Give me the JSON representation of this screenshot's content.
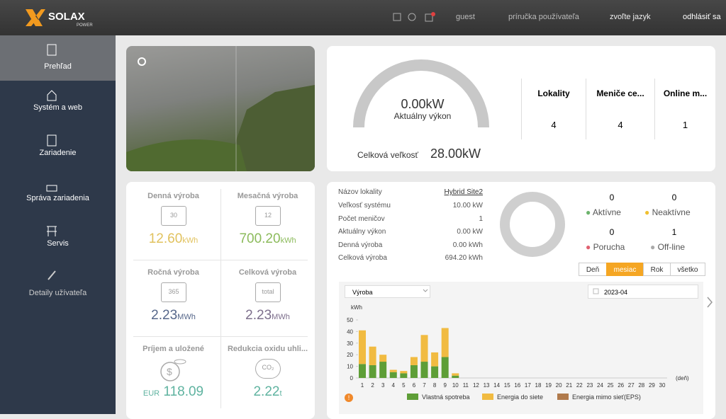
{
  "header": {
    "logo": "SOLAX",
    "logo_sub": "POWER",
    "user": "guest",
    "manual": "príručka používateľa",
    "language": "zvoľte jazyk",
    "logout": "odhlásiť sa"
  },
  "sidebar": {
    "items": [
      "Prehľad",
      "Systém a web",
      "Zariadenie",
      "Správa zariadenia",
      "Servis",
      "Detaily užívateľa"
    ]
  },
  "gauge": {
    "value": "0.00kW",
    "label": "Aktuálny výkon",
    "total_label": "Celková veľkosť",
    "total_value": "28.00kW"
  },
  "stats": [
    {
      "label": "Lokality",
      "value": "4"
    },
    {
      "label": "Meniče ce...",
      "value": "4"
    },
    {
      "label": "Online m...",
      "value": "1"
    }
  ],
  "production": [
    {
      "label": "Denná výroba",
      "icon": "30",
      "value": "12.60",
      "unit": "kWh"
    },
    {
      "label": "Mesačná výroba",
      "icon": "12",
      "value": "700.20",
      "unit": "kWh"
    },
    {
      "label": "Ročná výroba",
      "icon": "365",
      "value": "2.23",
      "unit": "MWh"
    },
    {
      "label": "Celková výroba",
      "icon": "total",
      "value": "2.23",
      "unit": "MWh"
    },
    {
      "label": "Príjem a uložené",
      "currency": "EUR",
      "value": "118.09"
    },
    {
      "label": "Redukcia oxidu uhli...",
      "icon": "CO₂",
      "value": "2.22",
      "unit": "t"
    }
  ],
  "site": {
    "info": [
      [
        "Názov lokality",
        "Hybrid Site2"
      ],
      [
        "Veľkosť systému",
        "10.00 kW"
      ],
      [
        "Počet meničov",
        "1"
      ],
      [
        "Aktuálny výkon",
        "0.00 kW"
      ],
      [
        "Denná výroba",
        "0.00 kWh"
      ],
      [
        "Celková výroba",
        "694.20 kWh"
      ]
    ],
    "status": [
      {
        "count": "0",
        "label": "Aktívne"
      },
      {
        "count": "0",
        "label": "Neaktívne"
      },
      {
        "count": "0",
        "label": "Porucha"
      },
      {
        "count": "1",
        "label": "Off-line"
      }
    ],
    "tabs": [
      "Deň",
      "mesiac",
      "Rok",
      "všetko"
    ],
    "dropdown": "Výroba",
    "date": "2023-04"
  },
  "chart_data": {
    "type": "bar",
    "stacked": true,
    "y_label": "kWh",
    "x_label": "(deň)",
    "categories": [
      "1",
      "2",
      "3",
      "4",
      "5",
      "6",
      "7",
      "8",
      "9",
      "10",
      "11",
      "12",
      "13",
      "14",
      "15",
      "16",
      "17",
      "18",
      "19",
      "20",
      "21",
      "22",
      "23",
      "24",
      "25",
      "26",
      "27",
      "28",
      "29",
      "30"
    ],
    "series": [
      {
        "name": "Vlastná spotreba",
        "color": "#5e9e37",
        "values": [
          12,
          11,
          14,
          5,
          4,
          11,
          14,
          10,
          18,
          2,
          null,
          null,
          null,
          null,
          null,
          null,
          null,
          null,
          null,
          null,
          null,
          null,
          null,
          null,
          null,
          null,
          null,
          null,
          null,
          null
        ]
      },
      {
        "name": "Energia do siete",
        "color": "#f1bb41",
        "values": [
          29,
          16,
          6,
          2,
          2,
          7,
          23,
          12,
          25,
          2,
          null,
          null,
          null,
          null,
          null,
          null,
          null,
          null,
          null,
          null,
          null,
          null,
          null,
          null,
          null,
          null,
          null,
          null,
          null,
          null
        ]
      },
      {
        "name": "Energia mimo sieť(EPS)",
        "color": "#b07a4c",
        "values": [
          0,
          0,
          0,
          0,
          0,
          0,
          0,
          0,
          0,
          0,
          null,
          null,
          null,
          null,
          null,
          null,
          null,
          null,
          null,
          null,
          null,
          null,
          null,
          null,
          null,
          null,
          null,
          null,
          null,
          null
        ]
      }
    ],
    "ylim": [
      0,
      50
    ],
    "yticks": [
      0,
      10,
      20,
      30,
      40,
      50
    ],
    "grid": false
  }
}
